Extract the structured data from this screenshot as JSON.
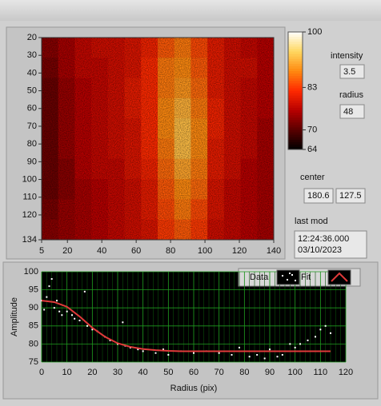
{
  "chart_data": [
    {
      "type": "heatmap",
      "xlim": [
        5,
        140
      ],
      "ylim": [
        20,
        134
      ],
      "xticks": [
        5,
        20,
        40,
        60,
        80,
        100,
        120,
        140
      ],
      "yticks": [
        20,
        30,
        40,
        50,
        60,
        70,
        80,
        90,
        100,
        110,
        120,
        134
      ],
      "colormap": [
        "#000000",
        "#5a0000",
        "#b80000",
        "#ff2a00",
        "#ff8a10",
        "#ffd860",
        "#ffffff"
      ],
      "colorbar_lim": [
        64,
        100
      ],
      "colorbar_ticks": [
        100,
        83,
        70,
        64
      ],
      "matrix": [
        [
          73,
          75,
          77,
          78,
          78,
          79,
          81,
          85,
          87,
          84,
          80,
          78,
          77,
          76
        ],
        [
          72,
          75,
          77,
          77,
          78,
          79,
          82,
          87,
          88,
          85,
          80,
          78,
          78,
          76
        ],
        [
          71,
          74,
          76,
          77,
          78,
          80,
          82,
          87,
          89,
          86,
          80,
          78,
          77,
          76
        ],
        [
          71,
          74,
          76,
          77,
          78,
          80,
          82,
          88,
          91,
          87,
          81,
          78,
          77,
          76
        ],
        [
          71,
          74,
          76,
          77,
          78,
          79,
          82,
          88,
          92,
          88,
          81,
          78,
          77,
          75
        ],
        [
          71,
          74,
          76,
          77,
          78,
          79,
          82,
          87,
          92,
          88,
          80,
          78,
          77,
          75
        ],
        [
          71,
          73,
          76,
          77,
          77,
          79,
          81,
          86,
          90,
          87,
          80,
          78,
          76,
          75
        ],
        [
          71,
          73,
          75,
          76,
          77,
          78,
          80,
          85,
          88,
          86,
          79,
          77,
          76,
          75
        ],
        [
          72,
          74,
          75,
          76,
          77,
          78,
          80,
          84,
          87,
          84,
          79,
          77,
          76,
          75
        ],
        [
          73,
          74,
          75,
          76,
          77,
          78,
          79,
          83,
          85,
          83,
          78,
          77,
          76,
          75
        ]
      ]
    },
    {
      "type": "scatter",
      "ylabel": "Amplitude",
      "xlabel": "Radius (pix)",
      "xlim": [
        0,
        120
      ],
      "ylim": [
        75,
        100
      ],
      "xticks": [
        0,
        10,
        20,
        30,
        40,
        50,
        60,
        70,
        80,
        90,
        100,
        110,
        120
      ],
      "yticks": [
        75,
        80,
        85,
        90,
        95,
        100
      ],
      "grid": true,
      "series": [
        {
          "name": "Data",
          "color": "#ffffff",
          "style": "points",
          "x": [
            0,
            1,
            2,
            3,
            4,
            5,
            6,
            7,
            8,
            10,
            12,
            13,
            15,
            17,
            18,
            20,
            22,
            25,
            27,
            30,
            32,
            33,
            35,
            38,
            40,
            45,
            48,
            50,
            55,
            60,
            65,
            70,
            75,
            78,
            82,
            85,
            88,
            90,
            93,
            95,
            98,
            100,
            102,
            105,
            108,
            110,
            112,
            114
          ],
          "values": [
            92,
            89.5,
            93,
            96,
            98,
            90,
            92,
            89,
            88,
            89,
            88,
            87,
            86.5,
            94.5,
            85,
            84,
            83.5,
            82,
            81,
            80,
            86,
            79.5,
            79,
            78.5,
            78,
            77.5,
            78.5,
            77,
            78,
            77.5,
            78,
            77.5,
            77,
            79,
            76.5,
            77,
            76,
            78.5,
            76.5,
            77,
            80,
            79,
            80,
            81,
            82,
            84,
            85,
            83
          ]
        },
        {
          "name": "Fit",
          "color": "#e03a3a",
          "style": "line",
          "x": [
            0,
            5,
            10,
            15,
            20,
            25,
            30,
            35,
            40,
            45,
            50,
            55,
            60,
            65,
            70,
            75,
            80,
            85,
            90,
            95,
            100,
            105,
            110,
            114
          ],
          "values": [
            92,
            91.6,
            90.3,
            87.6,
            84.5,
            82,
            80.2,
            79.2,
            78.6,
            78.3,
            78.1,
            78,
            78,
            78,
            78,
            78,
            78,
            78,
            78,
            78,
            78,
            78,
            78,
            78
          ]
        }
      ]
    }
  ],
  "controls": {
    "intensity_label": "intensity",
    "intensity": "3.5",
    "radius_label": "radius",
    "radius": "48",
    "center_label": "center",
    "center_x": "180.6",
    "center_y": "127.5",
    "last_mod_label": "last mod",
    "last_mod_time": "12:24:36.000",
    "last_mod_date": "03/10/2023"
  }
}
